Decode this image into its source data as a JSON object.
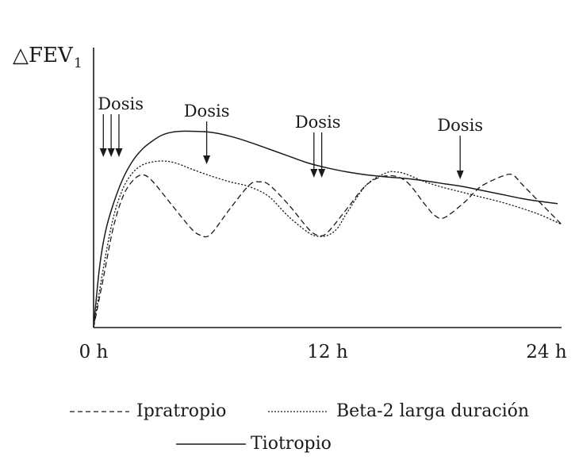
{
  "chart_data": {
    "type": "line",
    "ylabel_main": "△FEV",
    "ylabel_sub": "1",
    "x_ticks": [
      "0 h",
      "12 h",
      "24 h"
    ],
    "xlim": [
      0,
      24
    ],
    "ylim": [
      0,
      100
    ],
    "series": [
      {
        "name": "Tiotropio",
        "style": "solid",
        "x": [
          0,
          0.3,
          0.6,
          1,
          1.5,
          2,
          2.5,
          3,
          3.5,
          4,
          4.5,
          5,
          6,
          7,
          8,
          9,
          10,
          11,
          12,
          13,
          14,
          15,
          16,
          17,
          18,
          19,
          20,
          21,
          22,
          23,
          23.8
        ],
        "y": [
          0,
          30,
          48,
          62,
          75,
          84,
          90,
          94,
          97,
          98.5,
          99,
          99,
          98.5,
          96.5,
          93.5,
          90,
          86.5,
          83,
          80.5,
          78.5,
          77,
          76,
          75.2,
          74,
          72.5,
          71,
          69,
          67,
          65,
          63.5,
          62.5
        ]
      },
      {
        "name": "Beta-2 larga duración",
        "style": "dotted",
        "x": [
          0,
          0.5,
          1,
          1.5,
          2,
          2.5,
          3,
          3.5,
          4,
          4.5,
          5,
          6,
          7,
          8,
          9,
          10,
          11,
          11.5,
          12,
          12.5,
          13,
          14,
          15,
          15.5,
          16,
          17,
          18,
          19,
          20,
          21,
          22,
          23,
          24
        ],
        "y": [
          0,
          30,
          55,
          70,
          78,
          82,
          83.5,
          84,
          83.5,
          82,
          80,
          76.5,
          73.5,
          71,
          66,
          56,
          48,
          46,
          46.5,
          50,
          58,
          72,
          78,
          78.5,
          77.5,
          73.5,
          70.5,
          68,
          65.5,
          63,
          60,
          56.5,
          52
        ]
      },
      {
        "name": "Ipratropio",
        "style": "dashed",
        "x": [
          0,
          0.5,
          1,
          1.5,
          2,
          2.5,
          3,
          4,
          5,
          5.5,
          6,
          7,
          8,
          8.5,
          9,
          10,
          11,
          11.5,
          12,
          13,
          14,
          15,
          16,
          17,
          17.5,
          18,
          19,
          19.5,
          20,
          21,
          21.5,
          22,
          23,
          24
        ],
        "y": [
          0,
          25,
          50,
          66,
          74,
          77,
          74,
          62,
          50,
          46.5,
          47,
          60,
          72,
          73.5,
          72,
          62,
          50,
          46.5,
          48,
          60,
          72,
          76.5,
          74,
          62,
          56.5,
          55.5,
          63,
          68,
          72,
          76.5,
          77,
          72,
          62,
          52
        ]
      }
    ],
    "annotations": [
      {
        "text": "Dosis",
        "arrows_at_x": [
          0.5,
          0.9,
          1.3
        ]
      },
      {
        "text": "Dosis",
        "arrows_at_x": [
          5.8
        ]
      },
      {
        "text": "Dosis",
        "arrows_at_x": [
          11.3,
          11.7
        ]
      },
      {
        "text": "Dosis",
        "arrows_at_x": [
          18.8
        ]
      }
    ],
    "legend": [
      {
        "label": "Ipratropio",
        "style": "dashed"
      },
      {
        "label": "Beta-2 larga duración",
        "style": "dotted"
      },
      {
        "label": "Tiotropio",
        "style": "solid"
      }
    ],
    "grid": false
  }
}
